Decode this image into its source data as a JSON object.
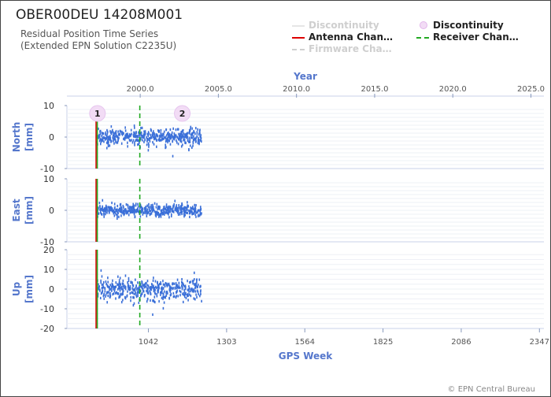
{
  "header": {
    "title": "OBER00DEU 14208M001",
    "subtitle_line1": "Residual Position Time Series",
    "subtitle_line2": "(Extended EPN Solution C2235U)"
  },
  "legend": [
    {
      "label": "Discontinuity",
      "style": "line",
      "color": "#e6e6e6",
      "faded": true
    },
    {
      "label": "Antenna Chan…",
      "style": "line",
      "color": "#dd0000",
      "faded": false
    },
    {
      "label": "Firmware Cha…",
      "style": "dashed",
      "color": "#cfcfcf",
      "faded": true
    },
    {
      "label": "Discontinuity",
      "style": "dot",
      "color": "#f2dcf5",
      "faded": false
    },
    {
      "label": "Receiver Chan…",
      "style": "dashed",
      "color": "#22aa22",
      "faded": false
    }
  ],
  "credit": "© EPN Central Bureau",
  "chart_data": {
    "type": "scatter",
    "top_axis": {
      "title": "Year",
      "range": [
        1995.31,
        2025.83
      ],
      "ticks": [
        "2000.0",
        "2005.0",
        "2010.0",
        "2015.0",
        "2020.0",
        "2025.0"
      ]
    },
    "bottom_axis": {
      "title": "GPS Week",
      "range": [
        770,
        2362
      ],
      "ticks": [
        "1042",
        "1303",
        "1564",
        "1825",
        "2086",
        "2347"
      ]
    },
    "data_week_range": [
      870,
      1220
    ],
    "panels": [
      {
        "name": "North",
        "unit": "[mm]",
        "ylim": [
          -10,
          10
        ],
        "ticks": [
          10,
          0,
          -10
        ],
        "noise": 2.0
      },
      {
        "name": "East",
        "unit": "[mm]",
        "ylim": [
          -10,
          10
        ],
        "ticks": [
          10,
          0,
          -10
        ],
        "noise": 1.6
      },
      {
        "name": "Up",
        "unit": "[mm]",
        "ylim": [
          -20,
          20
        ],
        "ticks": [
          20,
          10,
          0,
          -10,
          -20
        ],
        "noise": 4.5
      }
    ],
    "events": [
      {
        "type": "Antenna Change",
        "week": 870,
        "color": "#dd0000"
      },
      {
        "type": "Receiver Change",
        "week": 870,
        "color": "#22aa22"
      },
      {
        "type": "Receiver Change",
        "week": 1012,
        "color": "#22aa22"
      }
    ],
    "discontinuity_markers": [
      {
        "label": "1",
        "week": 872
      },
      {
        "label": "2",
        "week": 1155
      }
    ],
    "series_color": "#3a6fd8"
  }
}
